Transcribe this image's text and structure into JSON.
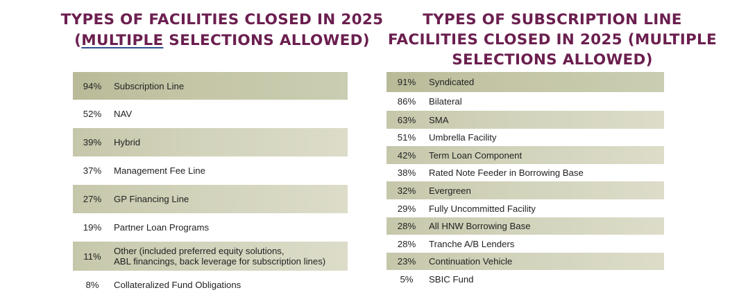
{
  "colors": {
    "title": "#6b1f4f",
    "band": "#d2d3bb",
    "band_strong": "#c3c5a5",
    "text": "#222222"
  },
  "chart_data": [
    {
      "type": "table",
      "title_lines": [
        "TYPES OF FACILITIES CLOSED IN 2025",
        "(MULTIPLE SELECTIONS ALLOWED)"
      ],
      "title_parts": [
        "(",
        "MULTIPLE",
        " SELECTIONS ALLOWED)"
      ],
      "rows": [
        {
          "pct": "94%",
          "value": 94,
          "label": "Subscription Line"
        },
        {
          "pct": "52%",
          "value": 52,
          "label": "NAV"
        },
        {
          "pct": "39%",
          "value": 39,
          "label": "Hybrid"
        },
        {
          "pct": "37%",
          "value": 37,
          "label": "Management Fee Line"
        },
        {
          "pct": "27%",
          "value": 27,
          "label": "GP Financing Line"
        },
        {
          "pct": "19%",
          "value": 19,
          "label": "Partner Loan Programs"
        },
        {
          "pct": "11%",
          "value": 11,
          "label": "Other (included preferred equity solutions,",
          "label2": "ABL financings, back leverage for subscription lines)"
        },
        {
          "pct": "8%",
          "value": 8,
          "label": "Collateralized Fund Obligations"
        }
      ]
    },
    {
      "type": "table",
      "title_lines": [
        "TYPES OF SUBSCRIPTION LINE",
        "FACILITIES CLOSED IN 2025 (MULTIPLE",
        "SELECTIONS ALLOWED)"
      ],
      "rows": [
        {
          "pct": "91%",
          "value": 91,
          "label": "Syndicated"
        },
        {
          "pct": "86%",
          "value": 86,
          "label": "Bilateral"
        },
        {
          "pct": "63%",
          "value": 63,
          "label": "SMA"
        },
        {
          "pct": "51%",
          "value": 51,
          "label": "Umbrella Facility"
        },
        {
          "pct": "42%",
          "value": 42,
          "label": "Term Loan Component"
        },
        {
          "pct": "38%",
          "value": 38,
          "label": "Rated Note Feeder in Borrowing Base"
        },
        {
          "pct": "32%",
          "value": 32,
          "label": "Evergreen"
        },
        {
          "pct": "29%",
          "value": 29,
          "label": "Fully Uncommitted Facility"
        },
        {
          "pct": "28%",
          "value": 28,
          "label": "All HNW Borrowing Base"
        },
        {
          "pct": "28%",
          "value": 28,
          "label": "Tranche A/B Lenders"
        },
        {
          "pct": "23%",
          "value": 23,
          "label": "Continuation Vehicle"
        },
        {
          "pct": "5%",
          "value": 5,
          "label": "SBIC Fund"
        }
      ]
    }
  ]
}
